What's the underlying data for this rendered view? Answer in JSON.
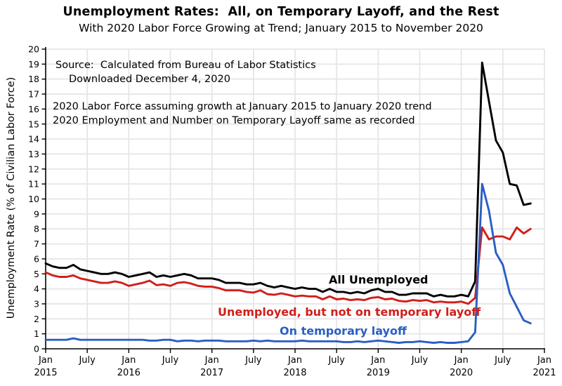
{
  "chart": {
    "title": "Unemployment Rates:  All, on Temporary Layoff, and the Rest",
    "subtitle": "With 2020 Labor Force Growing at Trend; January 2015 to November 2020"
  },
  "annotations": {
    "source_line1": "Source:  Calculated from Bureau of Labor Statistics",
    "source_line2": "Downloaded December 4, 2020",
    "note_line1": "2020 Labor Force assuming growth at January 2015 to January 2020 trend",
    "note_line2": "2020 Employment and Number on Temporary Layoff same as recorded"
  },
  "chart_data": {
    "type": "line",
    "title": "Unemployment Rates:  All, on Temporary Layoff, and the Rest",
    "subtitle": "With 2020 Labor Force Growing at Trend; January 2015 to November 2020",
    "xlabel": "",
    "ylabel": "Unemployment Rate (% of Civilian Labor Force)",
    "ylim": [
      0,
      20
    ],
    "y_ticks": [
      0,
      1,
      2,
      3,
      4,
      5,
      6,
      7,
      8,
      9,
      10,
      11,
      12,
      13,
      14,
      15,
      16,
      17,
      18,
      19,
      20
    ],
    "x_start": "2015-01",
    "x_end": "2021-01",
    "months_span": 72,
    "x_ticks": [
      {
        "month": "Jan",
        "year": "2015"
      },
      {
        "month": "July",
        "year": ""
      },
      {
        "month": "Jan",
        "year": "2016"
      },
      {
        "month": "July",
        "year": ""
      },
      {
        "month": "Jan",
        "year": "2017"
      },
      {
        "month": "July",
        "year": ""
      },
      {
        "month": "Jan",
        "year": "2018"
      },
      {
        "month": "July",
        "year": ""
      },
      {
        "month": "Jan",
        "year": "2019"
      },
      {
        "month": "July",
        "year": ""
      },
      {
        "month": "Jan",
        "year": "2020"
      },
      {
        "month": "July",
        "year": ""
      },
      {
        "month": "Jan",
        "year": "2021"
      }
    ],
    "grid": true,
    "grid_color": "#e6e6e6",
    "axis_color": "#000000",
    "legend_position": "inline-labels",
    "series": [
      {
        "name": "All Unemployed",
        "color": "#000000",
        "start": "2015-01",
        "values": [
          5.7,
          5.5,
          5.4,
          5.4,
          5.6,
          5.3,
          5.2,
          5.1,
          5.0,
          5.0,
          5.1,
          5.0,
          4.8,
          4.9,
          5.0,
          5.1,
          4.8,
          4.9,
          4.8,
          4.9,
          5.0,
          4.9,
          4.7,
          4.7,
          4.7,
          4.6,
          4.4,
          4.4,
          4.4,
          4.3,
          4.3,
          4.4,
          4.2,
          4.1,
          4.2,
          4.1,
          4.0,
          4.1,
          4.0,
          4.0,
          3.8,
          4.0,
          3.8,
          3.8,
          3.7,
          3.8,
          3.7,
          3.9,
          4.0,
          3.8,
          3.8,
          3.6,
          3.6,
          3.7,
          3.7,
          3.7,
          3.5,
          3.6,
          3.5,
          3.5,
          3.6,
          3.5,
          4.5,
          19.1,
          16.5,
          13.9,
          13.1,
          11.0,
          10.9,
          9.6,
          9.7
        ]
      },
      {
        "name": "Unemployed, but not on temporary layoff",
        "color": "#d01f1b",
        "start": "2015-01",
        "values": [
          5.1,
          4.9,
          4.8,
          4.8,
          4.9,
          4.7,
          4.6,
          4.5,
          4.4,
          4.4,
          4.5,
          4.4,
          4.2,
          4.3,
          4.4,
          4.55,
          4.25,
          4.3,
          4.2,
          4.4,
          4.45,
          4.35,
          4.2,
          4.15,
          4.15,
          4.05,
          3.9,
          3.9,
          3.9,
          3.8,
          3.75,
          3.9,
          3.65,
          3.6,
          3.7,
          3.6,
          3.5,
          3.55,
          3.5,
          3.5,
          3.3,
          3.5,
          3.3,
          3.35,
          3.25,
          3.3,
          3.25,
          3.4,
          3.45,
          3.3,
          3.35,
          3.2,
          3.15,
          3.25,
          3.2,
          3.25,
          3.1,
          3.15,
          3.1,
          3.1,
          3.15,
          3.0,
          3.4,
          8.1,
          7.3,
          7.5,
          7.5,
          7.3,
          8.1,
          7.7,
          8.0
        ]
      },
      {
        "name": "On temporary layoff",
        "color": "#2a5ec4",
        "start": "2015-01",
        "values": [
          0.6,
          0.6,
          0.6,
          0.6,
          0.7,
          0.6,
          0.6,
          0.6,
          0.6,
          0.6,
          0.6,
          0.6,
          0.6,
          0.6,
          0.6,
          0.55,
          0.55,
          0.6,
          0.6,
          0.5,
          0.55,
          0.55,
          0.5,
          0.55,
          0.55,
          0.55,
          0.5,
          0.5,
          0.5,
          0.5,
          0.55,
          0.5,
          0.55,
          0.5,
          0.5,
          0.5,
          0.5,
          0.55,
          0.5,
          0.5,
          0.5,
          0.5,
          0.5,
          0.45,
          0.45,
          0.5,
          0.45,
          0.5,
          0.55,
          0.5,
          0.45,
          0.4,
          0.45,
          0.45,
          0.5,
          0.45,
          0.4,
          0.45,
          0.4,
          0.4,
          0.45,
          0.5,
          1.1,
          11.0,
          9.2,
          6.4,
          5.6,
          3.7,
          2.8,
          1.9,
          1.7
        ]
      }
    ]
  }
}
